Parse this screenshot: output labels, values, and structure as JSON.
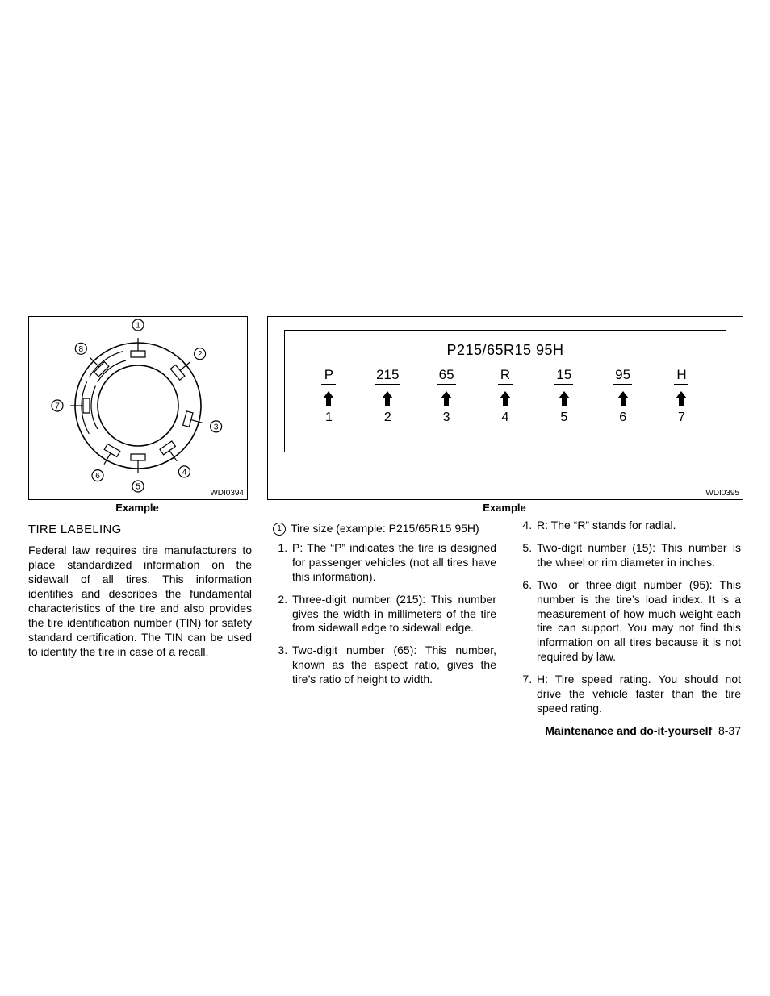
{
  "figures": {
    "left": {
      "code": "WDI0394",
      "caption": "Example",
      "tire_diagram": {
        "circle_outer_r": 78,
        "circle_inner_r": 50,
        "stroke": "#000000",
        "stroke_width": 1.6,
        "callouts": [
          {
            "num": "1",
            "angle_deg": -90
          },
          {
            "num": "2",
            "angle_deg": -40
          },
          {
            "num": "3",
            "angle_deg": 15
          },
          {
            "num": "4",
            "angle_deg": 55
          },
          {
            "num": "5",
            "angle_deg": 90
          },
          {
            "num": "6",
            "angle_deg": 120
          },
          {
            "num": "7",
            "angle_deg": 180
          },
          {
            "num": "8",
            "angle_deg": 225
          }
        ]
      }
    },
    "right": {
      "code": "WDI0395",
      "caption": "Example",
      "title": "P215/65R15 95H",
      "segments": [
        {
          "label": "P",
          "num": "1"
        },
        {
          "label": "215",
          "num": "2"
        },
        {
          "label": "65",
          "num": "3"
        },
        {
          "label": "R",
          "num": "4"
        },
        {
          "label": "15",
          "num": "5"
        },
        {
          "label": "95",
          "num": "6"
        },
        {
          "label": "H",
          "num": "7"
        }
      ],
      "arrow_fill": "#000000"
    }
  },
  "col1": {
    "heading": "TIRE LABELING",
    "para": "Federal law requires tire manufacturers to place standardized information on the sidewall of all tires. This information identifies and describes the fundamental characteristics of the tire and also provides the tire identification number (TIN) for safety standard certification. The TIN can be used to identify the tire in case of a recall."
  },
  "col2": {
    "circled_num": "1",
    "circled_text": "Tire size (example: P215/65R15 95H)",
    "items": [
      "P: The “P” indicates the tire is designed for passenger vehicles (not all tires have this information).",
      "Three-digit number (215): This number gives the width in millimeters of the tire from sidewall edge to sidewall edge.",
      "Two-digit number (65): This number, known as the aspect ratio, gives the tire’s ratio of height to width."
    ]
  },
  "col3": {
    "start": 4,
    "items": [
      "R: The “R” stands for radial.",
      "Two-digit number (15): This number is the wheel or rim diameter in inches.",
      "Two- or three-digit number (95): This number is the tire’s load index. It is a measurement of how much weight each tire can support. You may not find this information on all tires because it is not required by law.",
      "H: Tire speed rating. You should not drive the vehicle faster than the tire speed rating."
    ]
  },
  "footer": {
    "section": "Maintenance and do-it-yourself",
    "page": "8-37"
  }
}
